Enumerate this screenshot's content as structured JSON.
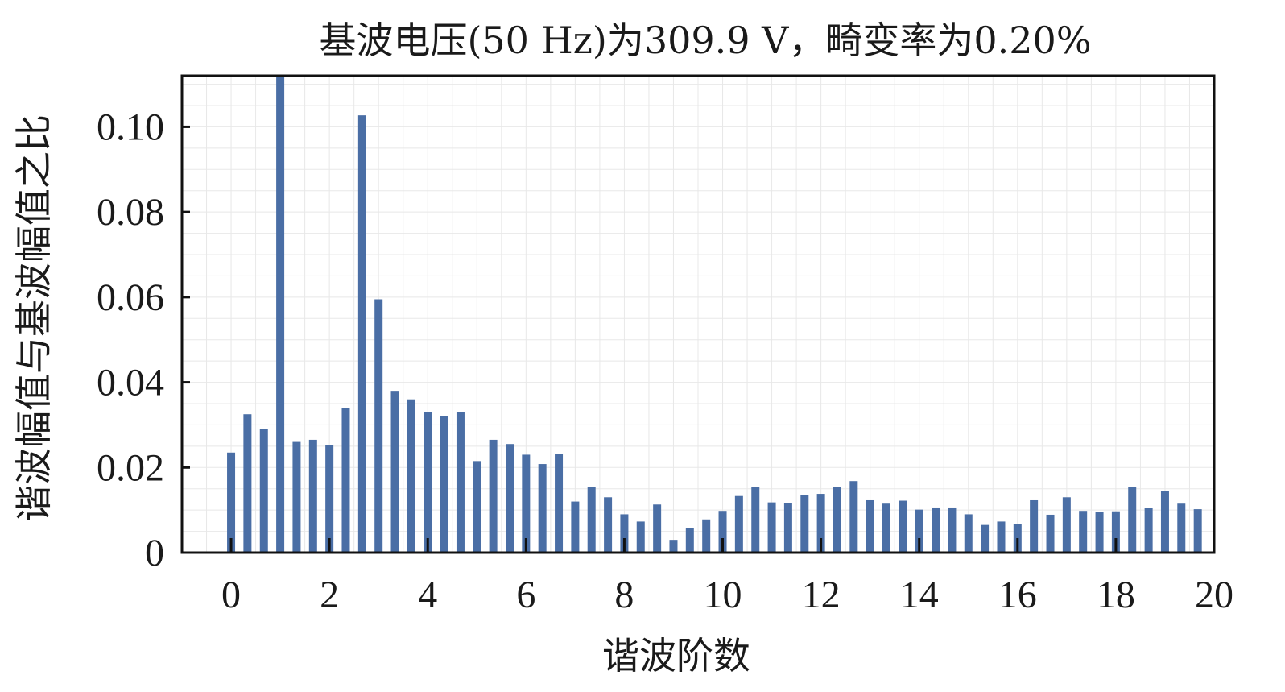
{
  "chart_data": {
    "type": "bar",
    "title": "基波电压(50 Hz)为309.9 V，畸变率为0.20%",
    "xlabel": "谐波阶数",
    "ylabel": "谐波幅值与基波幅值之比",
    "xlim": [
      -1,
      20
    ],
    "ylim": [
      0,
      0.112
    ],
    "grid": true,
    "legend": "none",
    "bar_color": "#4a6ea5",
    "x_ticks": [
      "0",
      "2",
      "4",
      "6",
      "8",
      "10",
      "12",
      "14",
      "16",
      "18",
      "20"
    ],
    "y_ticks": [
      "0",
      "0.02",
      "0.04",
      "0.06",
      "0.08",
      "0.10"
    ],
    "x": [
      0,
      0.333,
      0.667,
      1,
      1.333,
      1.667,
      2,
      2.333,
      2.667,
      3,
      3.333,
      3.667,
      4,
      4.333,
      4.667,
      5,
      5.333,
      5.667,
      6,
      6.333,
      6.667,
      7,
      7.333,
      7.667,
      8,
      8.333,
      8.667,
      9,
      9.333,
      9.667,
      10,
      10.333,
      10.667,
      11,
      11.333,
      11.667,
      12,
      12.333,
      12.667,
      13,
      13.333,
      13.667,
      14,
      14.333,
      14.667,
      15,
      15.333,
      15.667,
      16,
      16.333,
      16.667,
      17,
      17.333,
      17.667,
      18,
      18.333,
      18.667,
      19,
      19.333,
      19.667
    ],
    "values": [
      0.0235,
      0.0325,
      0.029,
      0.112,
      0.026,
      0.0265,
      0.0252,
      0.034,
      0.1027,
      0.0595,
      0.038,
      0.036,
      0.033,
      0.032,
      0.033,
      0.0215,
      0.0265,
      0.0255,
      0.023,
      0.0208,
      0.0232,
      0.012,
      0.0155,
      0.013,
      0.009,
      0.0073,
      0.0113,
      0.003,
      0.0058,
      0.0078,
      0.0098,
      0.0133,
      0.0155,
      0.0118,
      0.0117,
      0.0136,
      0.0138,
      0.0155,
      0.0168,
      0.0123,
      0.0115,
      0.0122,
      0.0101,
      0.0106,
      0.0106,
      0.009,
      0.0065,
      0.0073,
      0.0068,
      0.0123,
      0.0089,
      0.013,
      0.0098,
      0.0095,
      0.0097,
      0.0155,
      0.0105,
      0.0145,
      0.0115,
      0.0102
    ]
  }
}
